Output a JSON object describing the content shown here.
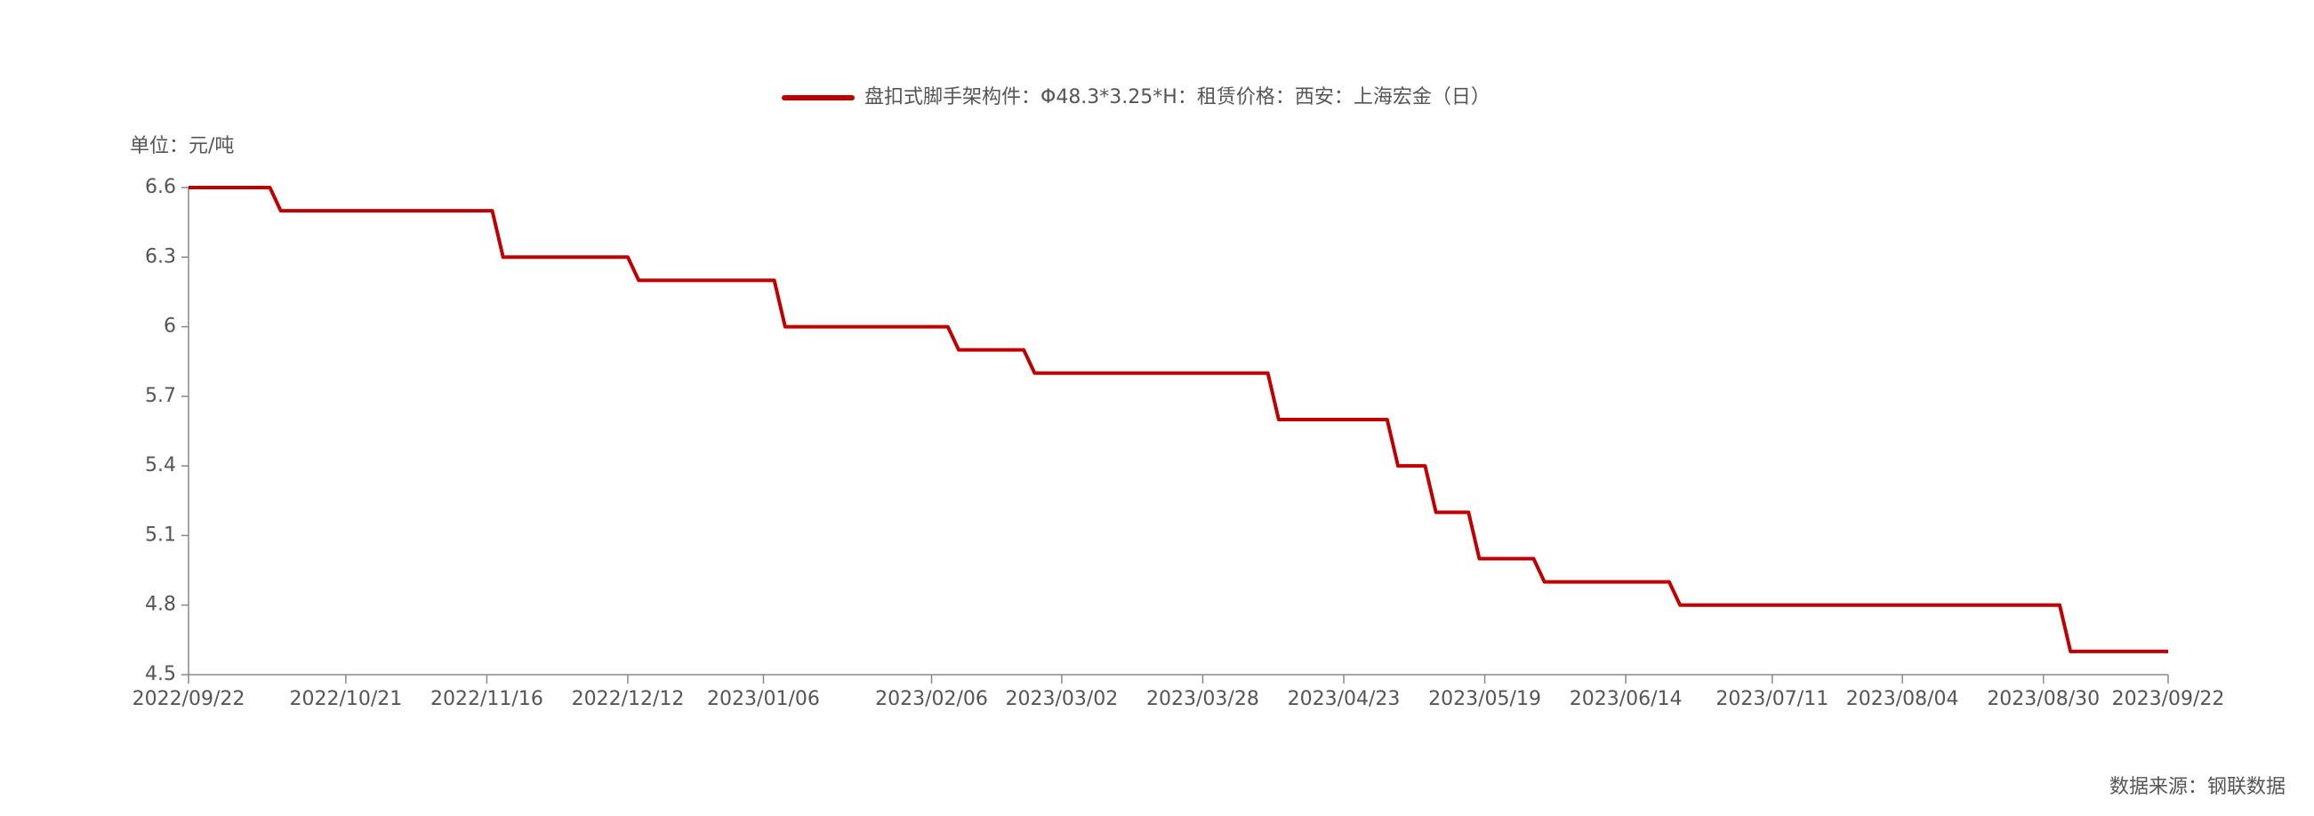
{
  "chart_data": {
    "type": "line",
    "legend_label": "盘扣式脚手架构件：Φ48.3*3.25*H：租赁价格：西安：上海宏金（日）",
    "unit_label": "单位：元/吨",
    "source": "数据来源：钢联数据",
    "x": [
      "2022/09/22",
      "2022/10/07",
      "2022/10/09",
      "2022/11/17",
      "2022/11/19",
      "2022/12/12",
      "2022/12/14",
      "2023/01/08",
      "2023/01/10",
      "2023/02/09",
      "2023/02/11",
      "2023/02/23",
      "2023/02/25",
      "2023/04/09",
      "2023/04/11",
      "2023/05/01",
      "2023/05/03",
      "2023/05/08",
      "2023/05/10",
      "2023/05/16",
      "2023/05/18",
      "2023/05/28",
      "2023/05/30",
      "2023/06/22",
      "2023/06/24",
      "2023/09/02",
      "2023/09/04",
      "2023/09/22"
    ],
    "series": [
      {
        "name": "盘扣式脚手架构件：Φ48.3*3.25*H：租赁价格：西安：上海宏金（日）",
        "color": "#c00000",
        "values": [
          6.6,
          6.6,
          6.5,
          6.5,
          6.3,
          6.3,
          6.2,
          6.2,
          6.0,
          6.0,
          5.9,
          5.9,
          5.8,
          5.8,
          5.6,
          5.6,
          5.4,
          5.4,
          5.2,
          5.2,
          5.0,
          5.0,
          4.9,
          4.9,
          4.8,
          4.8,
          4.6,
          4.6
        ]
      }
    ],
    "xlim": [
      "2022/09/22",
      "2023/09/22"
    ],
    "xticks": [
      "2022/09/22",
      "2022/10/21",
      "2022/11/16",
      "2022/12/12",
      "2023/01/06",
      "2023/02/06",
      "2023/03/02",
      "2023/03/28",
      "2023/04/23",
      "2023/05/19",
      "2023/06/14",
      "2023/07/11",
      "2023/08/04",
      "2023/08/30",
      "2023/09/22"
    ],
    "ylim": [
      4.5,
      6.6
    ],
    "yticks": [
      4.5,
      4.8,
      5.1,
      5.4,
      5.7,
      6,
      6.3,
      6.6
    ]
  }
}
